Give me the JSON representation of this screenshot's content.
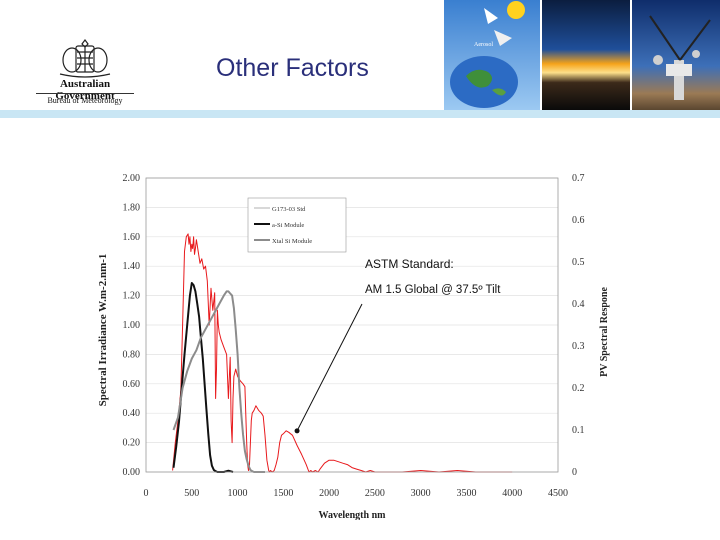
{
  "header": {
    "title": "Other Factors",
    "org_line1": "Australian Government",
    "org_line2": "Bureau of Meteorology",
    "band_color": "#c9e6f4",
    "title_color": "#2a2f7a"
  },
  "photo_panels": [
    {
      "name": "earth-aerosols-diagram",
      "caption": "Aerosol"
    },
    {
      "name": "sunset-horizon-photo",
      "caption": ""
    },
    {
      "name": "radiometer-station-photo",
      "caption": ""
    }
  ],
  "chart_data": {
    "type": "line",
    "title": "",
    "xlabel": "Wavelength nm",
    "ylabel": "Spectral Irradiance W.m-2.nm-1",
    "y2label": "PV Spectral Respone",
    "xlim": [
      0,
      4500
    ],
    "ylim": [
      0,
      2.0
    ],
    "y2lim": [
      0,
      0.7
    ],
    "xticks": [
      "0",
      "500",
      "1000",
      "1500",
      "2000",
      "2500",
      "3000",
      "3500",
      "4000",
      "4500"
    ],
    "yticks": [
      "0.00",
      "0.20",
      "0.40",
      "0.60",
      "0.80",
      "1.00",
      "1.20",
      "1.40",
      "1.60",
      "1.80",
      "2.00"
    ],
    "y2ticks": [
      "0",
      "0.1",
      "0.2",
      "0.3",
      "0.4",
      "0.5",
      "0.6",
      "0.7"
    ],
    "legend": {
      "placement": "top-left",
      "entries": [
        "G173-03 Std",
        "a-Si Module",
        "Xtal Si Module"
      ]
    },
    "annotation": {
      "line1": "ASTM Standard:",
      "line2": "AM 1.5  Global @ 37.5º Tilt",
      "points_to": {
        "x": 1650,
        "y": 0.28
      }
    },
    "series": [
      {
        "name": "G173-03 Std",
        "axis": "left",
        "color": "#e8191c",
        "x": [
          290,
          320,
          350,
          380,
          400,
          420,
          440,
          460,
          470,
          480,
          490,
          500,
          510,
          520,
          530,
          540,
          550,
          570,
          590,
          610,
          630,
          650,
          670,
          690,
          710,
          730,
          750,
          760,
          770,
          780,
          790,
          800,
          820,
          850,
          880,
          900,
          920,
          930,
          940,
          950,
          960,
          980,
          1000,
          1030,
          1060,
          1080,
          1100,
          1110,
          1120,
          1130,
          1140,
          1150,
          1160,
          1180,
          1200,
          1230,
          1260,
          1280,
          1300,
          1320,
          1340,
          1350,
          1360,
          1380,
          1400,
          1420,
          1440,
          1460,
          1480,
          1500,
          1530,
          1560,
          1600,
          1650,
          1700,
          1750,
          1780,
          1800,
          1820,
          1850,
          1880,
          1900,
          1950,
          2000,
          2050,
          2100,
          2150,
          2200,
          2250,
          2300,
          2350,
          2400,
          2450,
          2500,
          2600,
          2800,
          3000,
          3200,
          3400,
          3600,
          3800,
          4000
        ],
        "values": [
          0.01,
          0.2,
          0.35,
          0.55,
          1.0,
          1.5,
          1.6,
          1.62,
          1.55,
          1.6,
          1.5,
          1.55,
          1.52,
          1.6,
          1.48,
          1.52,
          1.58,
          1.5,
          1.42,
          1.45,
          1.38,
          1.4,
          1.3,
          1.0,
          1.25,
          1.1,
          1.22,
          0.5,
          0.7,
          1.1,
          1.0,
          0.95,
          0.9,
          0.85,
          0.8,
          0.5,
          0.78,
          0.35,
          0.2,
          0.5,
          0.65,
          0.7,
          0.65,
          0.62,
          0.6,
          0.58,
          0.2,
          0.05,
          0.01,
          0.05,
          0.2,
          0.35,
          0.4,
          0.42,
          0.45,
          0.42,
          0.4,
          0.38,
          0.25,
          0.08,
          0.01,
          0.0,
          0.01,
          0.0,
          0.01,
          0.05,
          0.1,
          0.2,
          0.25,
          0.26,
          0.28,
          0.27,
          0.25,
          0.18,
          0.12,
          0.05,
          0.0,
          0.01,
          0.0,
          0.01,
          0.0,
          0.02,
          0.06,
          0.08,
          0.08,
          0.07,
          0.06,
          0.05,
          0.03,
          0.02,
          0.01,
          0.0,
          0.01,
          0.0,
          0.0,
          0.0,
          0.01,
          0.0,
          0.01,
          0.0,
          0.0,
          0.0
        ]
      },
      {
        "name": "a-Si Module",
        "axis": "right",
        "color": "#111111",
        "x": [
          300,
          330,
          360,
          390,
          420,
          450,
          480,
          500,
          520,
          540,
          560,
          580,
          600,
          620,
          640,
          660,
          680,
          700,
          720,
          740,
          760,
          780,
          800,
          850,
          900,
          950
        ],
        "values": [
          0.01,
          0.06,
          0.12,
          0.2,
          0.28,
          0.35,
          0.42,
          0.45,
          0.445,
          0.43,
          0.4,
          0.37,
          0.32,
          0.27,
          0.21,
          0.15,
          0.09,
          0.04,
          0.015,
          0.005,
          0.002,
          0.0,
          0.0,
          0.0,
          0.003,
          0.0
        ]
      },
      {
        "name": "Xtal Si Module",
        "axis": "right",
        "color": "#8c8c8c",
        "x": [
          300,
          350,
          400,
          450,
          500,
          550,
          600,
          650,
          700,
          750,
          800,
          850,
          880,
          900,
          920,
          940,
          960,
          980,
          1000,
          1020,
          1040,
          1060,
          1080,
          1100,
          1120,
          1140,
          1160,
          1180,
          1200,
          1250,
          1300
        ],
        "values": [
          0.1,
          0.13,
          0.2,
          0.24,
          0.27,
          0.29,
          0.32,
          0.34,
          0.36,
          0.38,
          0.4,
          0.42,
          0.43,
          0.43,
          0.425,
          0.42,
          0.39,
          0.34,
          0.28,
          0.2,
          0.14,
          0.09,
          0.05,
          0.03,
          0.015,
          0.005,
          0.002,
          0.0,
          0.0,
          0.0,
          0.0
        ]
      }
    ]
  }
}
